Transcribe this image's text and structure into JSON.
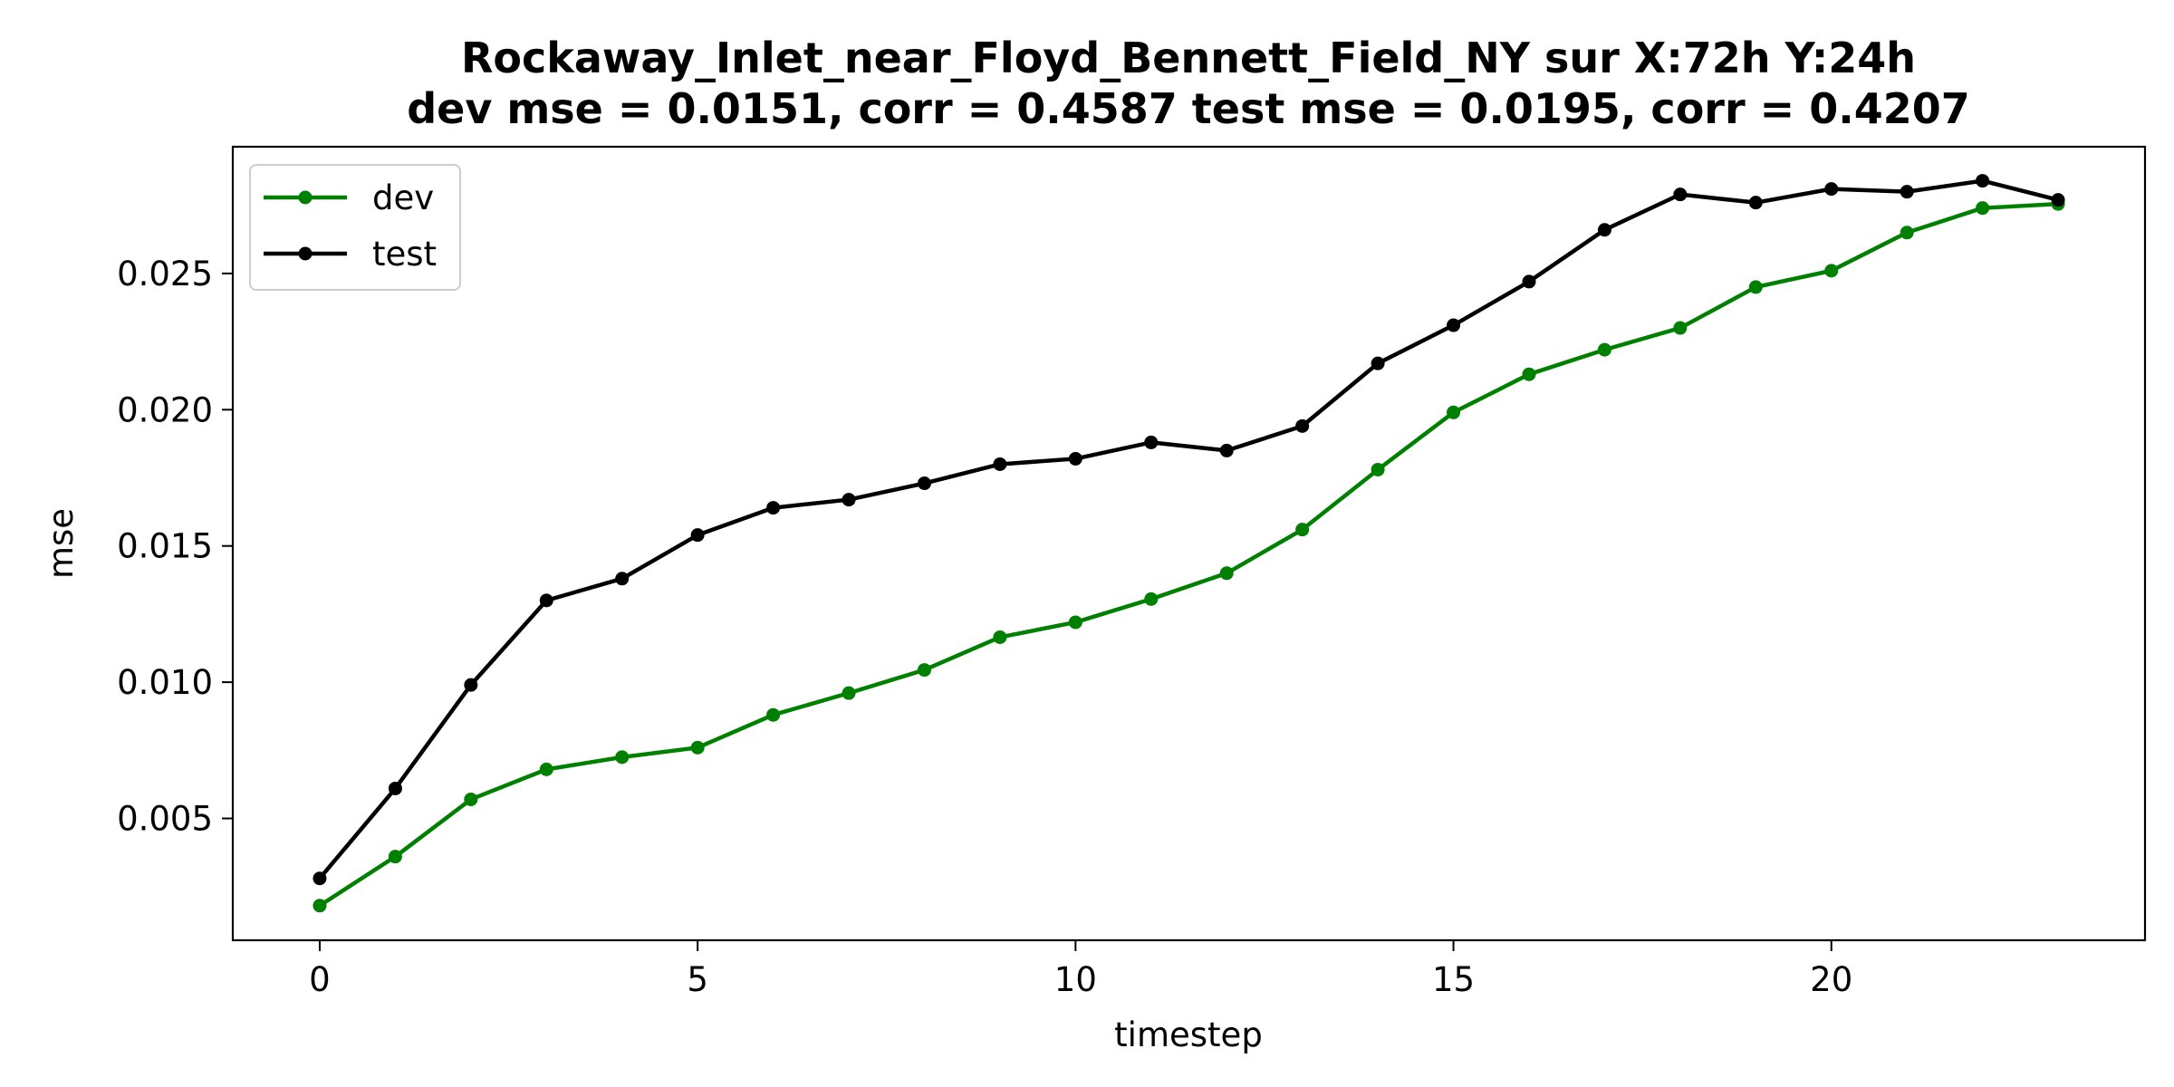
{
  "chart_data": {
    "type": "line",
    "title_line1": "Rockaway_Inlet_near_Floyd_Bennett_Field_NY   sur   X:72h   Y:24h",
    "title_line2": "dev mse = 0.0151, corr = 0.4587   test mse = 0.0195, corr = 0.4207",
    "xlabel": "timestep",
    "ylabel": "mse",
    "xlim": [
      -1.15,
      24.15
    ],
    "ylim": [
      0.00053,
      0.02965
    ],
    "xticks": [
      0,
      5,
      10,
      15,
      20
    ],
    "xtick_labels": [
      "0",
      "5",
      "10",
      "15",
      "20"
    ],
    "yticks": [
      0.005,
      0.01,
      0.015,
      0.02,
      0.025
    ],
    "ytick_labels": [
      "0.005",
      "0.010",
      "0.015",
      "0.020",
      "0.025"
    ],
    "grid": false,
    "legend_position": "upper-left",
    "x": [
      0,
      1,
      2,
      3,
      4,
      5,
      6,
      7,
      8,
      9,
      10,
      11,
      12,
      13,
      14,
      15,
      16,
      17,
      18,
      19,
      20,
      21,
      22,
      23
    ],
    "series": [
      {
        "name": "dev",
        "color": "#008000",
        "values": [
          0.0018,
          0.0036,
          0.0057,
          0.0068,
          0.00725,
          0.0076,
          0.0088,
          0.0096,
          0.01045,
          0.01165,
          0.0122,
          0.01305,
          0.014,
          0.0156,
          0.0178,
          0.0199,
          0.0213,
          0.0222,
          0.023,
          0.0245,
          0.0251,
          0.0265,
          0.0274,
          0.02755
        ]
      },
      {
        "name": "test",
        "color": "#000000",
        "values": [
          0.0028,
          0.0061,
          0.0099,
          0.013,
          0.0138,
          0.0154,
          0.0164,
          0.0167,
          0.0173,
          0.018,
          0.0182,
          0.0188,
          0.0185,
          0.0194,
          0.0217,
          0.0231,
          0.0247,
          0.0266,
          0.0279,
          0.0276,
          0.0281,
          0.028,
          0.0284,
          0.0277
        ]
      }
    ]
  }
}
